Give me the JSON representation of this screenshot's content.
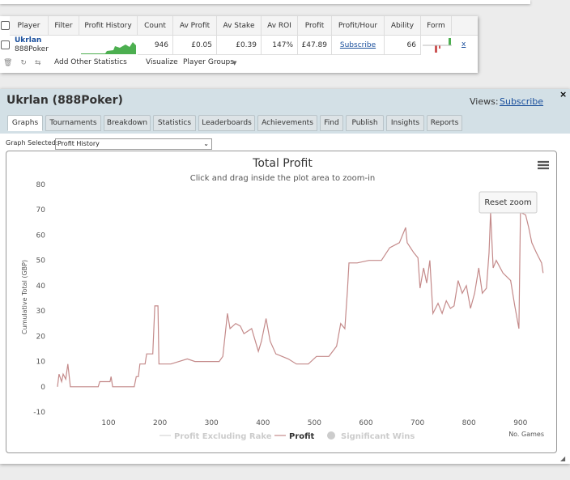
{
  "table": {
    "headers": [
      "Player",
      "Filter",
      "Profit History",
      "Count",
      "Av Profit",
      "Av Stake",
      "Av ROI",
      "Profit",
      "Profit/Hour",
      "Ability",
      "Form"
    ],
    "row": {
      "player": "Ukrlan",
      "site": "888Poker",
      "count": "946",
      "av_profit": "£0.05",
      "av_stake": "£0.39",
      "av_roi": "147%",
      "profit": "£47.89",
      "profit_hour": "Subscribe",
      "ability": "66",
      "remove": "x"
    },
    "toolbar": [
      "Add Other Statistics",
      "Visualize",
      "Player Groups"
    ]
  },
  "panel": {
    "title": "Ukrlan (888Poker)",
    "views_label": "Views:",
    "views_link": "Subscribe",
    "tabs": [
      "Graphs",
      "Tournaments",
      "Breakdown",
      "Statistics",
      "Leaderboards",
      "Achievements",
      "Find",
      "Publish",
      "Insights",
      "Reports"
    ],
    "graph_selected_label": "Graph Selected:",
    "graph_selected": "Profit History"
  },
  "chart_data": {
    "type": "line",
    "title": "Total Profit",
    "subtitle": "Click and drag inside the plot area to zoom-in",
    "reset_button": "Reset zoom",
    "y_label": "Cumulative Total (GBP)",
    "x_label": "No. Games",
    "xlim": [
      0,
      950
    ],
    "ylim": [
      -10,
      80
    ],
    "xticks": [
      100,
      200,
      300,
      400,
      500,
      600,
      700,
      800,
      900
    ],
    "yticks": [
      -10,
      0,
      10,
      20,
      30,
      40,
      50,
      60,
      70,
      80
    ],
    "inactive_legend": [
      "Profit Excluding Rake",
      "Significant Wins"
    ],
    "x": [
      1,
      4,
      9,
      12,
      17,
      21,
      26,
      80,
      83,
      103,
      105,
      108,
      150,
      154,
      158,
      161,
      171,
      174,
      186,
      190,
      196,
      198,
      205,
      221,
      237,
      253,
      268,
      300,
      315,
      322,
      331,
      336,
      347,
      356,
      363,
      378,
      391,
      397,
      406,
      414,
      425,
      449,
      465,
      488,
      504,
      528,
      543,
      551,
      559,
      564,
      567,
      583,
      606,
      630,
      646,
      665,
      677,
      680,
      693,
      701,
      705,
      712,
      718,
      724,
      730,
      740,
      748,
      756,
      764,
      771,
      779,
      787,
      795,
      803,
      811,
      819,
      826,
      834,
      839,
      842,
      847,
      853,
      866,
      881,
      889,
      897,
      900,
      910,
      916,
      922,
      931,
      941,
      944
    ],
    "series": [
      {
        "name": "Profit",
        "color": "#c48a8a",
        "values": [
          0,
          5,
          2,
          5,
          3,
          9,
          0,
          0,
          2,
          2,
          4,
          0,
          0,
          4,
          4,
          9,
          9,
          13,
          13,
          32,
          32,
          9,
          9,
          9,
          10,
          11,
          10,
          10,
          10,
          12,
          29,
          23,
          25,
          24,
          21,
          23,
          14,
          18,
          27,
          18,
          13,
          11,
          9,
          9,
          12,
          12,
          16,
          25,
          23,
          38,
          49,
          49,
          50,
          50,
          55,
          57,
          63,
          57,
          53,
          51,
          39,
          47,
          41,
          50,
          29,
          33,
          29,
          34,
          31,
          32,
          42,
          37,
          40,
          31,
          37,
          47,
          37,
          39,
          53,
          69,
          47,
          50,
          45,
          42,
          32,
          23,
          69,
          68,
          63,
          57,
          53,
          49,
          45
        ]
      }
    ]
  }
}
